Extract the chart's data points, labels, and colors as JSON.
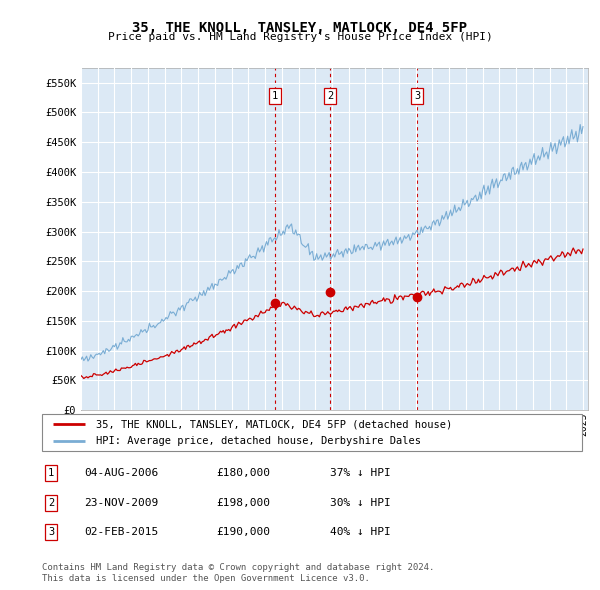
{
  "title": "35, THE KNOLL, TANSLEY, MATLOCK, DE4 5FP",
  "subtitle": "Price paid vs. HM Land Registry's House Price Index (HPI)",
  "ylabel_ticks": [
    "£0",
    "£50K",
    "£100K",
    "£150K",
    "£200K",
    "£250K",
    "£300K",
    "£350K",
    "£400K",
    "£450K",
    "£500K",
    "£550K"
  ],
  "ytick_vals": [
    0,
    50000,
    100000,
    150000,
    200000,
    250000,
    300000,
    350000,
    400000,
    450000,
    500000,
    550000
  ],
  "ylim": [
    0,
    575000
  ],
  "sale_year_floats": [
    2006.585,
    2009.895,
    2015.085
  ],
  "sale_prices": [
    180000,
    198000,
    190000
  ],
  "sale_labels": [
    "1",
    "2",
    "3"
  ],
  "sale_label_info": [
    {
      "label": "1",
      "date": "04-AUG-2006",
      "price": "£180,000",
      "pct": "37% ↓ HPI"
    },
    {
      "label": "2",
      "date": "23-NOV-2009",
      "price": "£198,000",
      "pct": "30% ↓ HPI"
    },
    {
      "label": "3",
      "date": "02-FEB-2015",
      "price": "£190,000",
      "pct": "40% ↓ HPI"
    }
  ],
  "legend_line1": "35, THE KNOLL, TANSLEY, MATLOCK, DE4 5FP (detached house)",
  "legend_line2": "HPI: Average price, detached house, Derbyshire Dales",
  "footer1": "Contains HM Land Registry data © Crown copyright and database right 2024.",
  "footer2": "This data is licensed under the Open Government Licence v3.0.",
  "sale_line_color": "#cc0000",
  "hpi_line_color": "#7aadd4",
  "vline_color": "#cc0000",
  "chart_bg_color": "#dce9f5",
  "grid_color": "#ffffff",
  "background_color": "#ffffff"
}
